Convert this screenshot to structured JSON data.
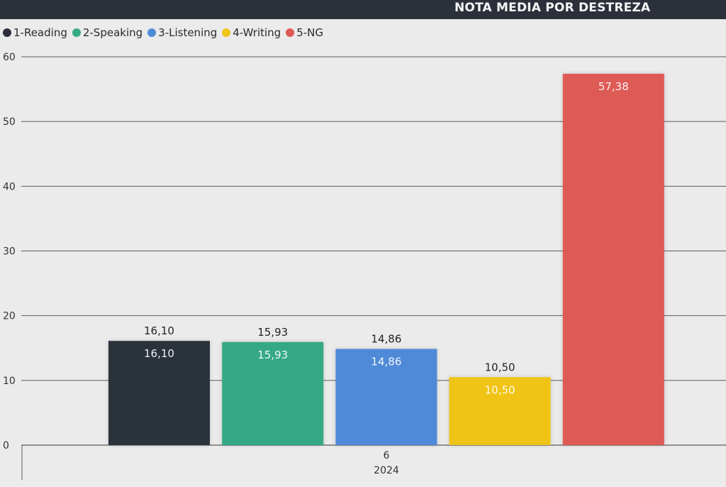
{
  "header": {
    "title": "NOTA MEDIA POR DESTREZA"
  },
  "legend": [
    {
      "label": "1-Reading",
      "color": "#2b303b"
    },
    {
      "label": "2-Speaking",
      "color": "#36a985"
    },
    {
      "label": "3-Listening",
      "color": "#4f8ad8"
    },
    {
      "label": "4-Writing",
      "color": "#f0c419"
    },
    {
      "label": "5-NG",
      "color": "#de5a55"
    }
  ],
  "chart_data": {
    "type": "bar",
    "title": "NOTA MEDIA POR DESTREZA",
    "categories": [
      "6"
    ],
    "category_group": "2024",
    "series": [
      {
        "name": "1-Reading",
        "values": [
          16.1
        ],
        "label": "16,10",
        "color": "#2b303b"
      },
      {
        "name": "2-Speaking",
        "values": [
          15.93
        ],
        "label": "15,93",
        "color": "#36a985"
      },
      {
        "name": "3-Listening",
        "values": [
          14.86
        ],
        "label": "14,86",
        "color": "#4f8ad8"
      },
      {
        "name": "4-Writing",
        "values": [
          10.5
        ],
        "label": "10,50",
        "color": "#f0c419"
      },
      {
        "name": "5-NG",
        "values": [
          57.38
        ],
        "label": "57,38",
        "color": "#de5a55"
      }
    ],
    "ylim": [
      0,
      60
    ],
    "yticks": [
      0,
      10,
      20,
      30,
      40,
      50,
      60
    ],
    "grid": true,
    "legend_position": "top-left"
  }
}
